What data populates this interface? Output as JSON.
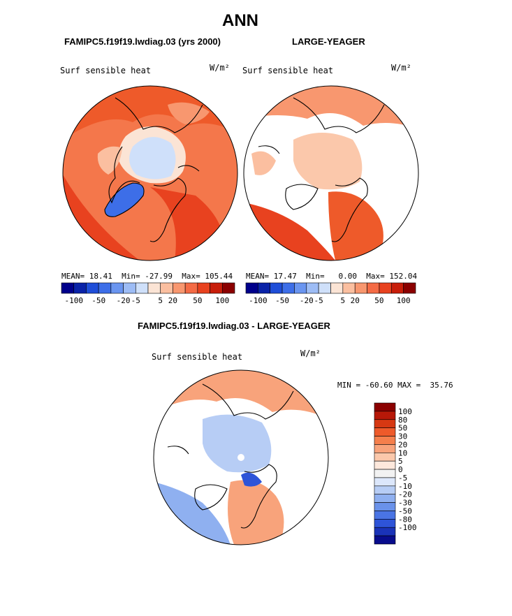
{
  "page": {
    "title": "ANN",
    "left_header": "FAMIPC5.f19f19.lwdiag.03 (yrs 2000)",
    "right_header": "LARGE-YEAGER",
    "diff_header": "FAMIPC5.f19f19.lwdiag.03 - LARGE-YEAGER"
  },
  "colors": {
    "palette": [
      "#00008b",
      "#0a23a8",
      "#1f4ed8",
      "#3d6ee8",
      "#6a95f0",
      "#9dbcf5",
      "#cfe0fa",
      "#fbe4d5",
      "#fbbfa0",
      "#f8976f",
      "#f46b45",
      "#e8421f",
      "#c81e0a",
      "#8b0000"
    ],
    "diff_palette": [
      "#8b0000",
      "#b71808",
      "#d63812",
      "#ee5a2a",
      "#f57f4c",
      "#f8a37b",
      "#fbc8ab",
      "#fde8dc",
      "#f2f2f2",
      "#dce7fb",
      "#b7cdf5",
      "#8fb0f0",
      "#6a92ea",
      "#4a74e4",
      "#2e54d8",
      "#1a33b8",
      "#080c8c"
    ],
    "land_bg": "#ffffff"
  },
  "left_map": {
    "var_label": "Surf sensible heat",
    "units": "W/m²",
    "stats": {
      "mean_label": "MEAN=",
      "mean": "18.41",
      "min_label": "Min=",
      "min": "-27.99",
      "max_label": "Max=",
      "max": "105.44"
    }
  },
  "right_map": {
    "var_label": "Surf sensible heat",
    "units": "W/m²",
    "stats": {
      "mean_label": "MEAN=",
      "mean": "17.47",
      "min_label": "Min=",
      "min": "0.00",
      "max_label": "Max=",
      "max": "152.04"
    }
  },
  "diff_map": {
    "var_label": "Surf sensible heat",
    "units": "W/m²",
    "minmax": "MIN = -60.60 MAX =  35.76"
  },
  "chart_data": [
    {
      "type": "heatmap",
      "projection": "north polar stereographic",
      "title": "FAMIPC5.f19f19.lwdiag.03 (yrs 2000)",
      "variable": "Surf sensible heat",
      "units": "W/m²",
      "stats": {
        "mean": 18.41,
        "min": -27.99,
        "max": 105.44
      },
      "colorbar": {
        "orientation": "horizontal",
        "tick_labels": [
          "-100",
          "-50",
          "-20",
          "-5",
          "5",
          "20",
          "50",
          "100"
        ]
      }
    },
    {
      "type": "heatmap",
      "projection": "north polar stereographic",
      "title": "LARGE-YEAGER",
      "variable": "Surf sensible heat",
      "units": "W/m²",
      "stats": {
        "mean": 17.47,
        "min": 0.0,
        "max": 152.04
      },
      "colorbar": {
        "orientation": "horizontal",
        "tick_labels": [
          "-100",
          "-50",
          "-20",
          "-5",
          "5",
          "20",
          "50",
          "100"
        ]
      }
    },
    {
      "type": "heatmap",
      "projection": "north polar stereographic",
      "title": "FAMIPC5.f19f19.lwdiag.03 - LARGE-YEAGER",
      "variable": "Surf sensible heat",
      "units": "W/m²",
      "stats": {
        "min": -60.6,
        "max": 35.76
      },
      "colorbar": {
        "orientation": "vertical",
        "tick_labels": [
          "100",
          "80",
          "50",
          "30",
          "20",
          "10",
          "5",
          "0",
          "-5",
          "-10",
          "-20",
          "-30",
          "-50",
          "-80",
          "-100"
        ]
      }
    }
  ]
}
